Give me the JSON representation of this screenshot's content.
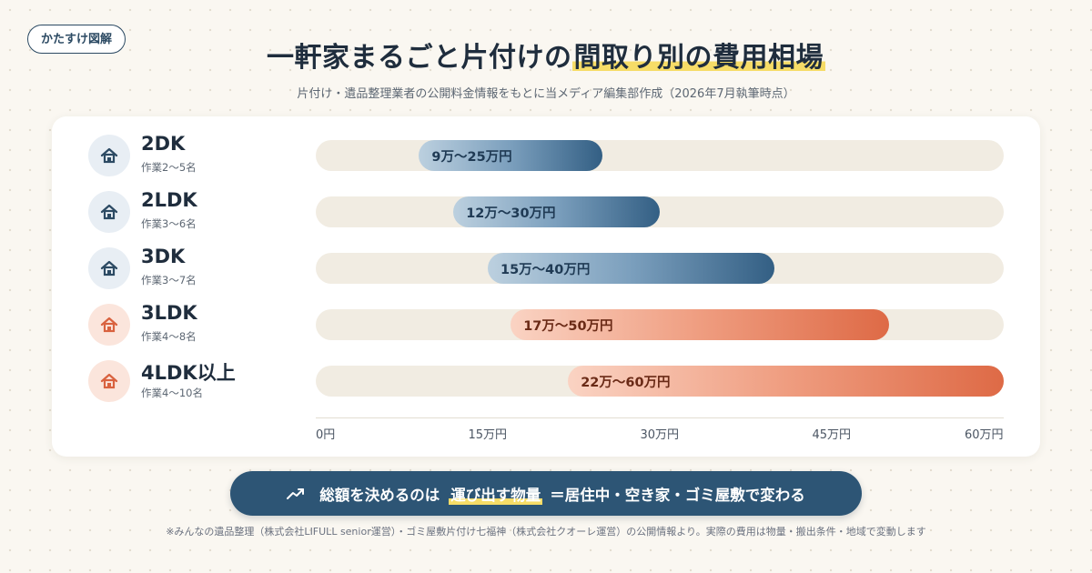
{
  "brand": "かたすけ図解",
  "title_prefix": "一軒家まるごと片付けの",
  "title_highlight": "間取り別の費用相場",
  "subtitle": "片付け・遺品整理業者の公開料金情報をもとに当メディア編集部作成（2026年7月執筆時点）",
  "chart_data": {
    "type": "bar",
    "orientation": "horizontal-range",
    "unit": "万円",
    "xlim": [
      0,
      60
    ],
    "ticks": [
      "0円",
      "15万円",
      "30万円",
      "45万円",
      "60万円"
    ],
    "tick_values": [
      0,
      15,
      30,
      45,
      60
    ],
    "rows": [
      {
        "label": "2DK",
        "sub": "作業2〜5名",
        "min": 9,
        "max": 25,
        "range_label": "9万〜25万円",
        "color": "blue"
      },
      {
        "label": "2LDK",
        "sub": "作業3〜6名",
        "min": 12,
        "max": 30,
        "range_label": "12万〜30万円",
        "color": "blue"
      },
      {
        "label": "3DK",
        "sub": "作業3〜7名",
        "min": 15,
        "max": 40,
        "range_label": "15万〜40万円",
        "color": "blue"
      },
      {
        "label": "3LDK",
        "sub": "作業4〜8名",
        "min": 17,
        "max": 50,
        "range_label": "17万〜50万円",
        "color": "orange"
      },
      {
        "label": "4LDK以上",
        "sub": "作業4〜10名",
        "min": 22,
        "max": 60,
        "range_label": "22万〜60万円",
        "color": "orange"
      }
    ],
    "colors": {
      "blue_start": "#bcd0df",
      "blue_end": "#335f84",
      "orange_start": "#fad3c3",
      "orange_end": "#de6a46"
    }
  },
  "callout": {
    "icon": "trend-up-icon",
    "prefix": "総額を決めるのは",
    "emphasis": "運び出す物量",
    "suffix": "＝居住中・空き家・ゴミ屋敷で変わる"
  },
  "footnote": "※みんなの遺品整理（株式会社LIFULL senior運営）・ゴミ屋敷片付け七福神（株式会社クオーレ運営）の公開情報より。実際の費用は物量・搬出条件・地域で変動します"
}
